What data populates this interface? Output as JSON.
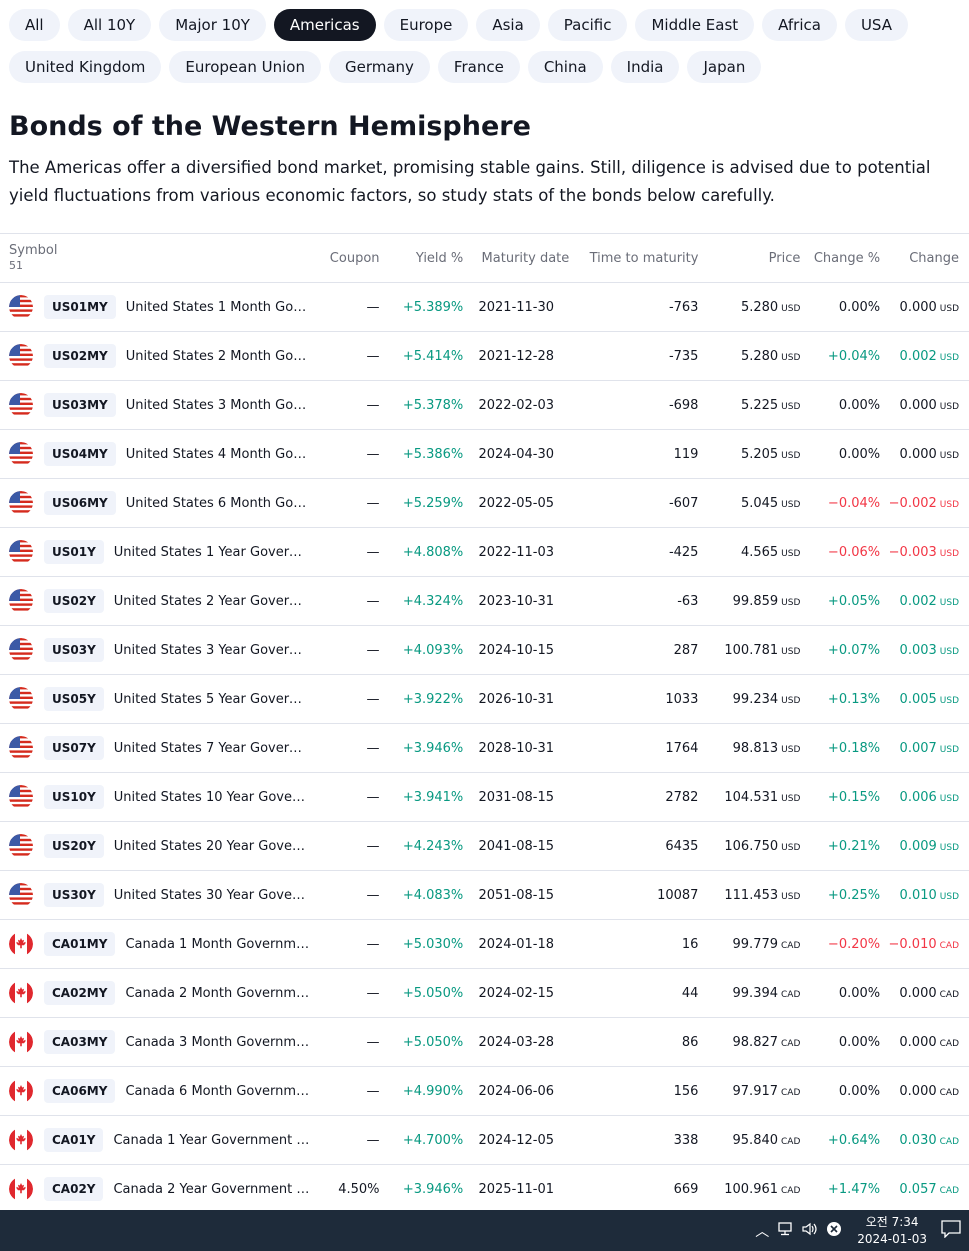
{
  "tabs_row1": [
    "All",
    "All 10Y",
    "Major 10Y",
    "Americas",
    "Europe",
    "Asia",
    "Pacific",
    "Middle East",
    "Africa",
    "USA"
  ],
  "tabs_row2": [
    "United Kingdom",
    "European Union",
    "Germany",
    "France",
    "China",
    "India",
    "Japan"
  ],
  "active_tab": "Americas",
  "title": "Bonds of the Western Hemisphere",
  "description": "The Americas offer a diversified bond market, promising stable gains. Still, diligence is advised due to potential yield fluctuations from various economic factors, so study stats of the bonds below carefully.",
  "table": {
    "headers": {
      "symbol": "Symbol",
      "count": "51",
      "coupon": "Coupon",
      "yield": "Yield %",
      "maturity": "Maturity date",
      "ttm": "Time to maturity",
      "price": "Price",
      "change_pct": "Change %",
      "change": "Change"
    },
    "rows": [
      {
        "flag": "us",
        "ticker": "US01MY",
        "name": "United States 1 Month Gover…",
        "coupon": "—",
        "yield": "+5.389%",
        "maturity": "2021-11-30",
        "ttm": "-763",
        "price": "5.280",
        "cur": "USD",
        "chg_pct": "0.00%",
        "chg": "0.000",
        "dir": "flat"
      },
      {
        "flag": "us",
        "ticker": "US02MY",
        "name": "United States 2 Month Gover…",
        "coupon": "—",
        "yield": "+5.414%",
        "maturity": "2021-12-28",
        "ttm": "-735",
        "price": "5.280",
        "cur": "USD",
        "chg_pct": "+0.04%",
        "chg": "0.002",
        "dir": "pos"
      },
      {
        "flag": "us",
        "ticker": "US03MY",
        "name": "United States 3 Month Gover…",
        "coupon": "—",
        "yield": "+5.378%",
        "maturity": "2022-02-03",
        "ttm": "-698",
        "price": "5.225",
        "cur": "USD",
        "chg_pct": "0.00%",
        "chg": "0.000",
        "dir": "flat"
      },
      {
        "flag": "us",
        "ticker": "US04MY",
        "name": "United States 4 Month Gover…",
        "coupon": "—",
        "yield": "+5.386%",
        "maturity": "2024-04-30",
        "ttm": "119",
        "price": "5.205",
        "cur": "USD",
        "chg_pct": "0.00%",
        "chg": "0.000",
        "dir": "flat"
      },
      {
        "flag": "us",
        "ticker": "US06MY",
        "name": "United States 6 Month Gover…",
        "coupon": "—",
        "yield": "+5.259%",
        "maturity": "2022-05-05",
        "ttm": "-607",
        "price": "5.045",
        "cur": "USD",
        "chg_pct": "−0.04%",
        "chg": "−0.002",
        "dir": "neg"
      },
      {
        "flag": "us",
        "ticker": "US01Y",
        "name": "United States 1 Year Govern…",
        "coupon": "—",
        "yield": "+4.808%",
        "maturity": "2022-11-03",
        "ttm": "-425",
        "price": "4.565",
        "cur": "USD",
        "chg_pct": "−0.06%",
        "chg": "−0.003",
        "dir": "neg"
      },
      {
        "flag": "us",
        "ticker": "US02Y",
        "name": "United States 2 Year Govern…",
        "coupon": "—",
        "yield": "+4.324%",
        "maturity": "2023-10-31",
        "ttm": "-63",
        "price": "99.859",
        "cur": "USD",
        "chg_pct": "+0.05%",
        "chg": "0.002",
        "dir": "pos"
      },
      {
        "flag": "us",
        "ticker": "US03Y",
        "name": "United States 3 Year Govern…",
        "coupon": "—",
        "yield": "+4.093%",
        "maturity": "2024-10-15",
        "ttm": "287",
        "price": "100.781",
        "cur": "USD",
        "chg_pct": "+0.07%",
        "chg": "0.003",
        "dir": "pos"
      },
      {
        "flag": "us",
        "ticker": "US05Y",
        "name": "United States 5 Year Govern…",
        "coupon": "—",
        "yield": "+3.922%",
        "maturity": "2026-10-31",
        "ttm": "1033",
        "price": "99.234",
        "cur": "USD",
        "chg_pct": "+0.13%",
        "chg": "0.005",
        "dir": "pos"
      },
      {
        "flag": "us",
        "ticker": "US07Y",
        "name": "United States 7 Year Govern…",
        "coupon": "—",
        "yield": "+3.946%",
        "maturity": "2028-10-31",
        "ttm": "1764",
        "price": "98.813",
        "cur": "USD",
        "chg_pct": "+0.18%",
        "chg": "0.007",
        "dir": "pos"
      },
      {
        "flag": "us",
        "ticker": "US10Y",
        "name": "United States 10 Year Govern…",
        "coupon": "—",
        "yield": "+3.941%",
        "maturity": "2031-08-15",
        "ttm": "2782",
        "price": "104.531",
        "cur": "USD",
        "chg_pct": "+0.15%",
        "chg": "0.006",
        "dir": "pos"
      },
      {
        "flag": "us",
        "ticker": "US20Y",
        "name": "United States 20 Year Govern…",
        "coupon": "—",
        "yield": "+4.243%",
        "maturity": "2041-08-15",
        "ttm": "6435",
        "price": "106.750",
        "cur": "USD",
        "chg_pct": "+0.21%",
        "chg": "0.009",
        "dir": "pos"
      },
      {
        "flag": "us",
        "ticker": "US30Y",
        "name": "United States 30 Year Govern…",
        "coupon": "—",
        "yield": "+4.083%",
        "maturity": "2051-08-15",
        "ttm": "10087",
        "price": "111.453",
        "cur": "USD",
        "chg_pct": "+0.25%",
        "chg": "0.010",
        "dir": "pos"
      },
      {
        "flag": "ca",
        "ticker": "CA01MY",
        "name": "Canada 1 Month Governmen…",
        "coupon": "—",
        "yield": "+5.030%",
        "maturity": "2024-01-18",
        "ttm": "16",
        "price": "99.779",
        "cur": "CAD",
        "chg_pct": "−0.20%",
        "chg": "−0.010",
        "dir": "neg"
      },
      {
        "flag": "ca",
        "ticker": "CA02MY",
        "name": "Canada 2 Month Governmen…",
        "coupon": "—",
        "yield": "+5.050%",
        "maturity": "2024-02-15",
        "ttm": "44",
        "price": "99.394",
        "cur": "CAD",
        "chg_pct": "0.00%",
        "chg": "0.000",
        "dir": "flat"
      },
      {
        "flag": "ca",
        "ticker": "CA03MY",
        "name": "Canada 3 Month Governmen…",
        "coupon": "—",
        "yield": "+5.050%",
        "maturity": "2024-03-28",
        "ttm": "86",
        "price": "98.827",
        "cur": "CAD",
        "chg_pct": "0.00%",
        "chg": "0.000",
        "dir": "flat"
      },
      {
        "flag": "ca",
        "ticker": "CA06MY",
        "name": "Canada 6 Month Governmen…",
        "coupon": "—",
        "yield": "+4.990%",
        "maturity": "2024-06-06",
        "ttm": "156",
        "price": "97.917",
        "cur": "CAD",
        "chg_pct": "0.00%",
        "chg": "0.000",
        "dir": "flat"
      },
      {
        "flag": "ca",
        "ticker": "CA01Y",
        "name": "Canada 1 Year Government B…",
        "coupon": "—",
        "yield": "+4.700%",
        "maturity": "2024-12-05",
        "ttm": "338",
        "price": "95.840",
        "cur": "CAD",
        "chg_pct": "+0.64%",
        "chg": "0.030",
        "dir": "pos"
      },
      {
        "flag": "ca",
        "ticker": "CA02Y",
        "name": "Canada 2 Year Government B…",
        "coupon": "4.50%",
        "yield": "+3.946%",
        "maturity": "2025-11-01",
        "ttm": "669",
        "price": "100.961",
        "cur": "CAD",
        "chg_pct": "+1.47%",
        "chg": "0.057",
        "dir": "pos"
      }
    ]
  },
  "taskbar": {
    "time": "오전 7:34",
    "date": "2024-01-03",
    "icons": [
      "chevron-up-icon",
      "network-icon",
      "volume-icon",
      "close-circle-icon",
      "notification-icon"
    ]
  },
  "colors": {
    "positive": "#089981",
    "negative": "#f23645",
    "active_tab_bg": "#131722",
    "taskbar": "#1e2b3a"
  }
}
